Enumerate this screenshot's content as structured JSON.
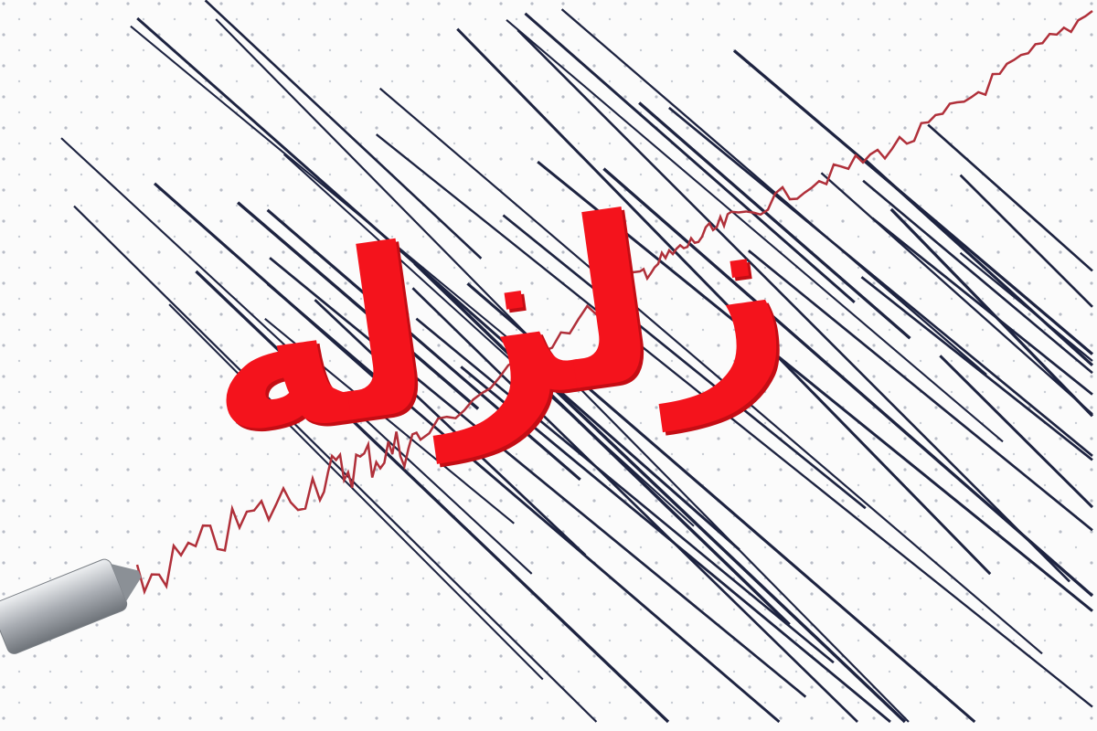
{
  "headline": "زلزله",
  "colors": {
    "background": "#fbfbfb",
    "lines": "#1d2340",
    "trace": "#b0303a",
    "headline": "#f4131c",
    "pen": "#a9adb3"
  },
  "icons": {
    "pen": "seismograph-pen-icon"
  }
}
